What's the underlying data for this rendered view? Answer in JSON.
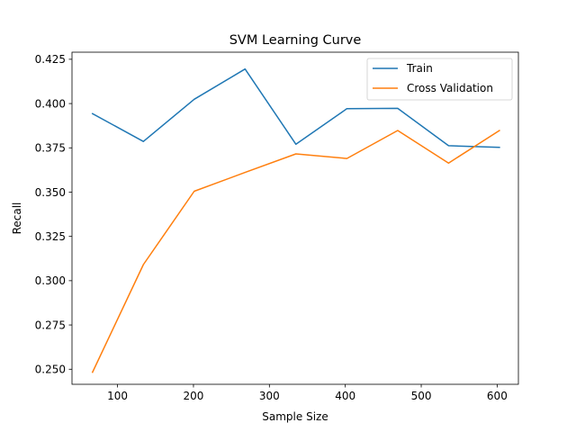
{
  "chart_data": {
    "type": "line",
    "title": "SVM Learning Curve",
    "xlabel": "Sample Size",
    "ylabel": "Recall",
    "xlim": [
      40,
      628
    ],
    "ylim": [
      0.2415,
      0.429
    ],
    "xticks": [
      100,
      200,
      300,
      400,
      500,
      600
    ],
    "xtick_labels": [
      "100",
      "200",
      "300",
      "400",
      "500",
      "600"
    ],
    "yticks": [
      0.25,
      0.275,
      0.3,
      0.325,
      0.35,
      0.375,
      0.4,
      0.425
    ],
    "ytick_labels": [
      "0.250",
      "0.275",
      "0.300",
      "0.325",
      "0.350",
      "0.375",
      "0.400",
      "0.425"
    ],
    "grid": false,
    "legend_position": "top-right",
    "x": [
      67,
      134,
      201,
      268,
      335,
      402,
      469,
      536,
      603
    ],
    "series": [
      {
        "name": "Train",
        "color": "#1f77b4",
        "values": [
          0.3943,
          0.3786,
          0.4024,
          0.4195,
          0.377,
          0.3971,
          0.3973,
          0.3762,
          0.3753
        ]
      },
      {
        "name": "Cross Validation",
        "color": "#ff7f0e",
        "values": [
          0.2483,
          0.3091,
          0.3505,
          0.3611,
          0.3716,
          0.369,
          0.3848,
          0.3664,
          0.3848
        ]
      }
    ]
  }
}
